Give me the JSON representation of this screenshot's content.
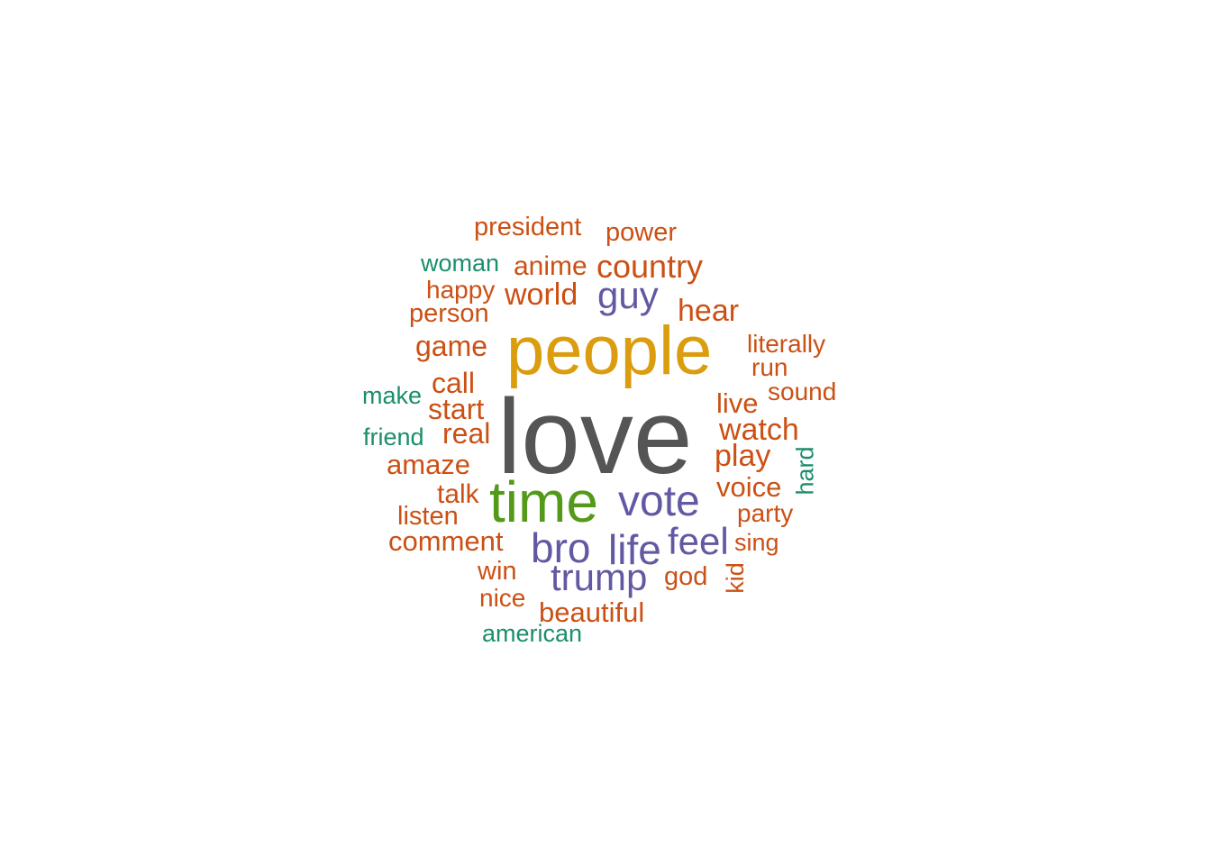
{
  "colors": {
    "background": "#ffffff",
    "dark_gray": "#555555",
    "mustard": "#DB9D0E",
    "green": "#549A1A",
    "purple": "#6159A2",
    "orange": "#CC5014",
    "teal": "#1B8E6C"
  },
  "words": {
    "love": "love",
    "people": "people",
    "time": "time",
    "vote": "vote",
    "bro": "bro",
    "life": "life",
    "feel": "feel",
    "trump": "trump",
    "guy": "guy",
    "country": "country",
    "world": "world",
    "hear": "hear",
    "watch": "watch",
    "play": "play",
    "game": "game",
    "call": "call",
    "real": "real",
    "start": "start",
    "amaze": "amaze",
    "comment": "comment",
    "voice": "voice",
    "live": "live",
    "anime": "anime",
    "beautiful": "beautiful",
    "talk": "talk",
    "president": "president",
    "power": "power",
    "listen": "listen",
    "person": "person",
    "happy": "happy",
    "win": "win",
    "nice": "nice",
    "god": "god",
    "party": "party",
    "sing": "sing",
    "sound": "sound",
    "literally": "literally",
    "run": "run",
    "woman": "woman",
    "make": "make",
    "friend": "friend",
    "american": "american",
    "hard": "hard",
    "kid": "kid"
  },
  "word_colors": {
    "love": "dark_gray",
    "people": "mustard",
    "time": "green",
    "vote": "purple",
    "bro": "purple",
    "life": "purple",
    "feel": "purple",
    "trump": "purple",
    "guy": "purple",
    "woman": "teal",
    "make": "teal",
    "friend": "teal",
    "american": "teal",
    "hard": "teal"
  },
  "default_color": "orange"
}
